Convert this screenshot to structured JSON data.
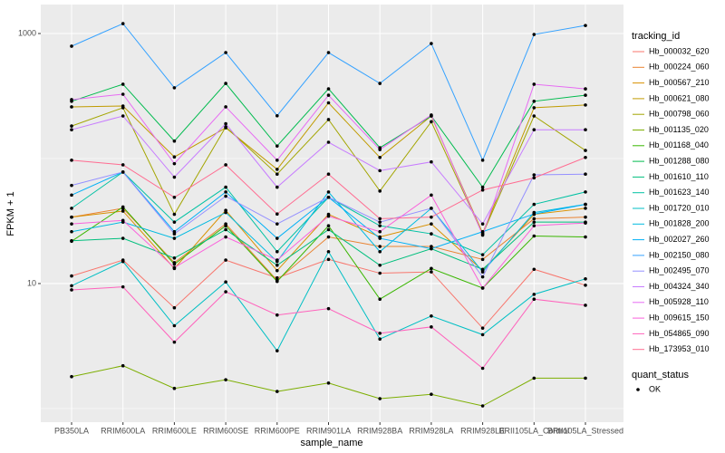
{
  "chart_data": {
    "type": "line",
    "x_label": "sample_name",
    "y_label": "FPKM + 1",
    "categories": [
      "PB350LA",
      "RRIM600LA",
      "RRIM600LE",
      "RRIM600SE",
      "RRIM600PE",
      "RRIM901LA",
      "RRIM928BA",
      "RRIM928LA",
      "RRIM928LE",
      "BRII105LA_Control",
      "BRII105LA_Stressed"
    ],
    "ylim": [
      0.778,
      1706
    ],
    "yticks": [
      10,
      1000
    ],
    "log_scale": true,
    "grid": true,
    "legend_title": "tracking_id",
    "legend_position": "right",
    "point_legend": {
      "title": "quant_status",
      "labels": [
        "OK"
      ],
      "color": "#000000"
    },
    "series": [
      {
        "name": "Hb_000032_620",
        "color": "#F8766D",
        "values": [
          11.5,
          15.4,
          6.4,
          15.4,
          11.1,
          15.6,
          12.1,
          12.4,
          4.4,
          13.0,
          9.7
        ]
      },
      {
        "name": "Hb_000224_060",
        "color": "#EA8331",
        "values": [
          34,
          40,
          14.7,
          30,
          10.6,
          23.6,
          19.8,
          19.8,
          15.6,
          33,
          34
        ]
      },
      {
        "name": "Hb_000567_210",
        "color": "#D89000",
        "values": [
          34,
          38,
          13.2,
          38.5,
          12.7,
          35.8,
          23.6,
          30,
          12.7,
          35.8,
          40
        ]
      },
      {
        "name": "Hb_000621_080",
        "color": "#C09B00",
        "values": [
          259,
          263,
          103,
          176,
          82,
          279,
          102,
          219,
          25.3,
          255,
          268
        ]
      },
      {
        "name": "Hb_000798_060",
        "color": "#A3A500",
        "values": [
          182,
          255,
          35.8,
          179,
          75,
          205,
          55,
          197,
          24.8,
          219,
          116
        ]
      },
      {
        "name": "Hb_001135_020",
        "color": "#7CAE00",
        "values": [
          1.8,
          2.2,
          1.45,
          1.7,
          1.37,
          1.6,
          1.2,
          1.3,
          1.05,
          1.75,
          1.75
        ]
      },
      {
        "name": "Hb_001168_040",
        "color": "#39B600",
        "values": [
          21.8,
          41,
          14.3,
          29,
          10.4,
          29,
          7.5,
          13.2,
          9.2,
          24,
          23.6
        ]
      },
      {
        "name": "Hb_001288_080",
        "color": "#00BB4E",
        "values": [
          287,
          393,
          138,
          399,
          126,
          361,
          122,
          219,
          59,
          287,
          321
        ]
      },
      {
        "name": "Hb_001610_110",
        "color": "#00BF7D",
        "values": [
          22,
          23,
          16,
          27,
          14,
          27,
          14,
          19,
          13,
          31,
          31
        ]
      },
      {
        "name": "Hb_001623_140",
        "color": "#00C1A3",
        "values": [
          40,
          78,
          31,
          59,
          18,
          49,
          29,
          25,
          17,
          43,
          54
        ]
      },
      {
        "name": "Hb_001720_010",
        "color": "#00BFC4",
        "values": [
          9.6,
          15,
          4.6,
          10.3,
          2.9,
          18,
          3.6,
          5.5,
          3.9,
          8.2,
          10.9
        ]
      },
      {
        "name": "Hb_001828_200",
        "color": "#00BAE0",
        "values": [
          26,
          31,
          23,
          37,
          15,
          54,
          18,
          40,
          12.4,
          37,
          43
        ]
      },
      {
        "name": "Hb_002027_260",
        "color": "#00B0F6",
        "values": [
          51,
          78,
          26,
          54,
          23,
          49,
          23,
          19,
          26,
          36,
          43
        ]
      },
      {
        "name": "Hb_002150_080",
        "color": "#35A2FF",
        "values": [
          792,
          1200,
          368,
          704,
          220,
          704,
          399,
          832,
          97,
          983,
          1160
        ]
      },
      {
        "name": "Hb_002495_070",
        "color": "#9590FF",
        "values": [
          61,
          78,
          25,
          50,
          30,
          49,
          31,
          40,
          11.3,
          74,
          75
        ]
      },
      {
        "name": "Hb_004324_340",
        "color": "#C77CFF",
        "values": [
          170,
          219,
          71,
          190,
          59,
          135,
          80,
          94,
          30,
          170,
          170
        ]
      },
      {
        "name": "Hb_005928_110",
        "color": "#E76BF3",
        "values": [
          296,
          327,
          91,
          259,
          97,
          321,
          118,
          223,
          24.4,
          393,
          361
        ]
      },
      {
        "name": "Hb_009615_150",
        "color": "#FA62DB",
        "values": [
          30,
          32,
          13.4,
          23.6,
          15.4,
          34.6,
          26,
          51,
          9.2,
          29,
          30.5
        ]
      },
      {
        "name": "Hb_054865_090",
        "color": "#FF62BC",
        "values": [
          8.9,
          9.4,
          3.4,
          8.6,
          5.6,
          6.3,
          4.0,
          4.5,
          2.1,
          7.5,
          6.7
        ]
      },
      {
        "name": "Hb_173953_010",
        "color": "#FF6C91",
        "values": [
          97,
          89,
          49,
          89,
          36,
          75,
          33,
          34,
          56,
          70,
          102
        ]
      }
    ]
  }
}
